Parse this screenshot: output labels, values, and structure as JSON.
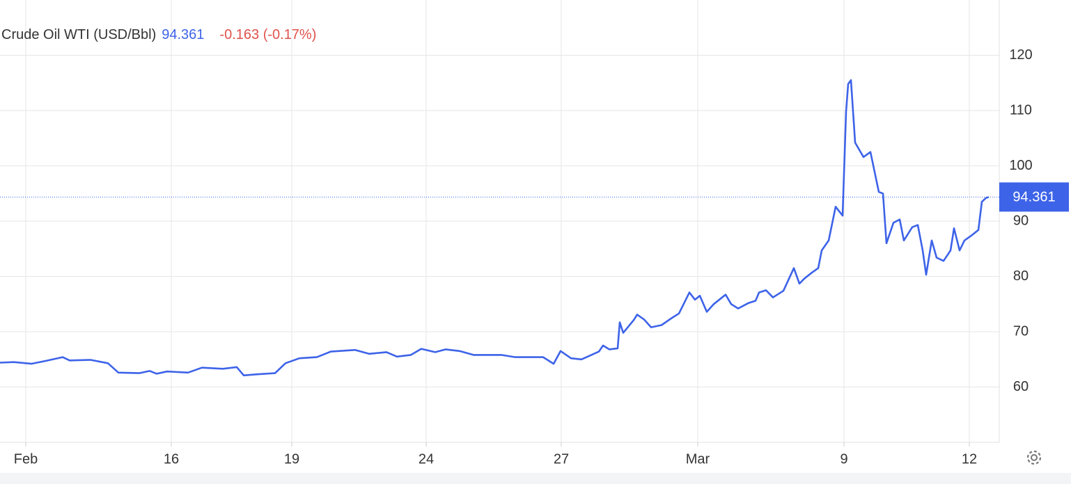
{
  "chart_data": {
    "type": "line",
    "title": "Crude Oil WTI (USD/Bbl)",
    "last_value": 94.361,
    "change_label": "-0.163 (-0.17%)",
    "series": [
      {
        "name": "Crude Oil WTI (USD/Bbl)",
        "color": "#3d63e8",
        "x": [
          0,
          2,
          4.5,
          6.5,
          9,
          10,
          13,
          15.5,
          17,
          20,
          21.5,
          22.5,
          24,
          27,
          29,
          32,
          34,
          35,
          37,
          39.5,
          41,
          43,
          45.5,
          47.5,
          51,
          53,
          55.5,
          57,
          59,
          60.5,
          62.5,
          64,
          66,
          68,
          72,
          74,
          78,
          79.5,
          80.5,
          82,
          83.5,
          86,
          86.6,
          87.5,
          88.7,
          89,
          89.5,
          91,
          91.5,
          92.5,
          93.5,
          95,
          96.5,
          97.5,
          99,
          99.8,
          100.5,
          101.5,
          102.5,
          104.2,
          105,
          106,
          107.5,
          108.5,
          109,
          110,
          111,
          112.5,
          114,
          114.8,
          115.5,
          116.5,
          117.5,
          118,
          119,
          120,
          121,
          121.5,
          121.8,
          122.2,
          122.8,
          124,
          125,
          126.2,
          126.8,
          127.3,
          128.3,
          129.2,
          129.8,
          131,
          131.8,
          132.5,
          133,
          133.8,
          134.5,
          135.5,
          136.5,
          137,
          137.8,
          138.5,
          139.5,
          140.5,
          141,
          141.6,
          142
        ],
        "values": [
          64.4,
          64.5,
          64.2,
          64.7,
          65.4,
          64.8,
          64.9,
          64.3,
          62.6,
          62.5,
          62.9,
          62.4,
          62.8,
          62.6,
          63.5,
          63.3,
          63.6,
          62.1,
          62.3,
          62.5,
          64.3,
          65.2,
          65.4,
          66.4,
          66.7,
          66.0,
          66.3,
          65.5,
          65.8,
          66.9,
          66.3,
          66.8,
          66.5,
          65.8,
          65.8,
          65.4,
          65.4,
          64.2,
          66.5,
          65.2,
          65.0,
          66.4,
          67.5,
          66.8,
          67.0,
          71.7,
          69.8,
          72.1,
          73.1,
          72.2,
          70.8,
          71.2,
          72.5,
          73.3,
          77.1,
          75.8,
          76.5,
          73.6,
          75.0,
          76.7,
          75.0,
          74.2,
          75.2,
          75.6,
          77.1,
          77.5,
          76.2,
          77.4,
          81.5,
          78.7,
          79.6,
          80.6,
          81.5,
          84.7,
          86.5,
          92.6,
          91.0,
          109.8,
          114.8,
          115.5,
          104.2,
          101.6,
          102.5,
          95.3,
          95.0,
          86.0,
          89.7,
          90.3,
          86.5,
          88.9,
          89.3,
          84.7,
          80.3,
          86.5,
          83.4,
          82.8,
          84.7,
          88.7,
          84.7,
          86.5,
          87.4,
          88.4,
          93.5,
          94.2,
          94.361
        ]
      }
    ],
    "xlim": [
      0,
      143.5
    ],
    "xticks": [
      {
        "value": 3.7,
        "label": "Feb"
      },
      {
        "value": 24.6,
        "label": "16"
      },
      {
        "value": 41.9,
        "label": "19"
      },
      {
        "value": 61.2,
        "label": "24"
      },
      {
        "value": 80.6,
        "label": "27"
      },
      {
        "value": 100.2,
        "label": "Mar"
      },
      {
        "value": 121.2,
        "label": "9"
      },
      {
        "value": 139.2,
        "label": "12"
      }
    ],
    "ylim": [
      50,
      130
    ],
    "yticks": [
      60,
      70,
      80,
      90,
      100,
      110,
      120
    ],
    "grid": true
  }
}
